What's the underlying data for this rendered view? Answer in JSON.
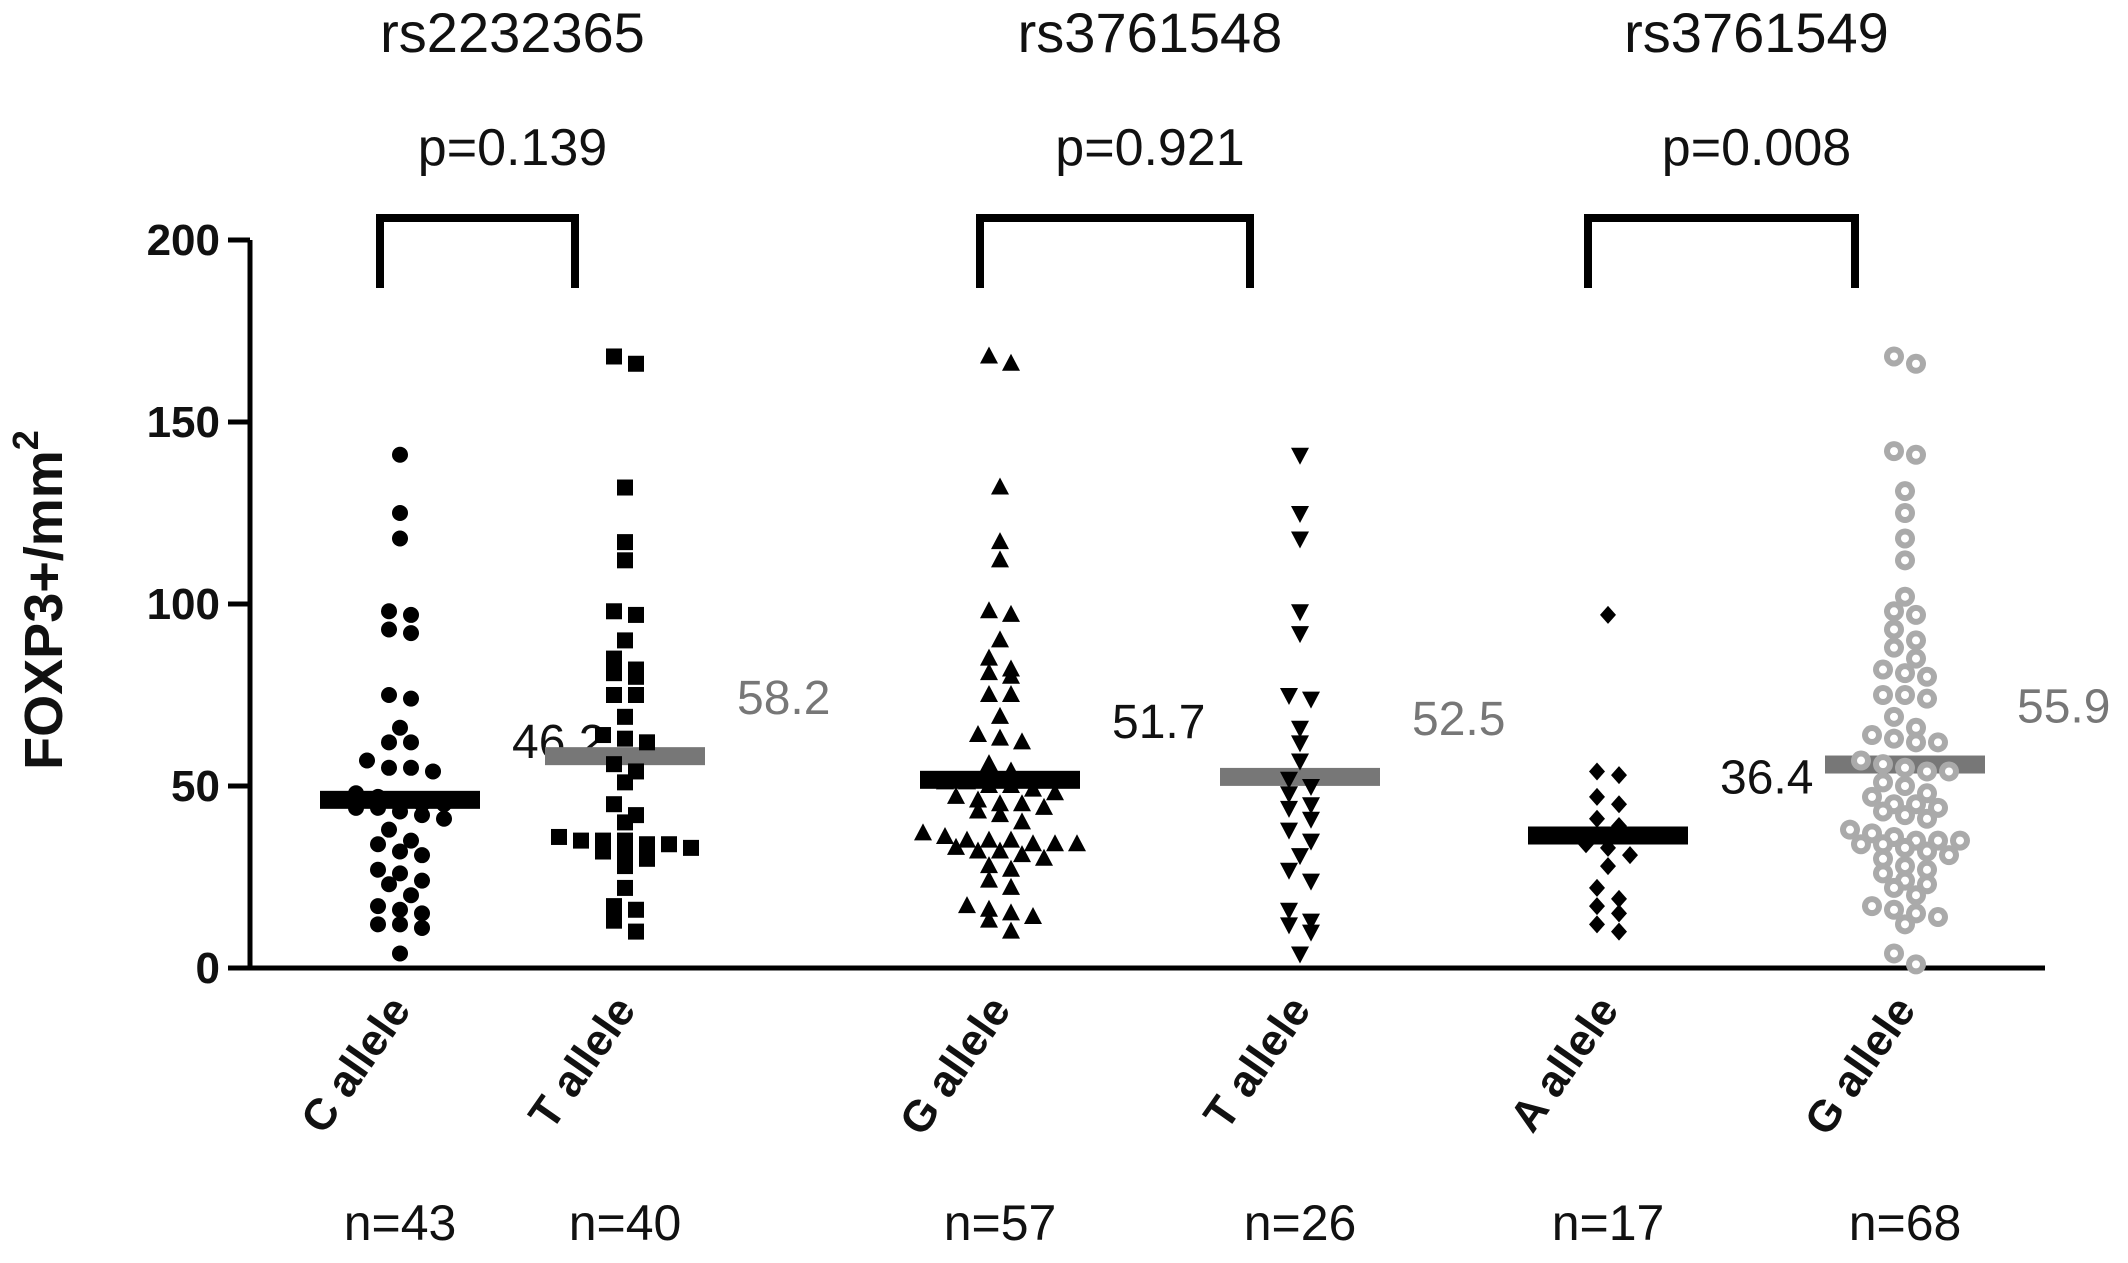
{
  "chart_data": {
    "type": "scatter",
    "ylabel": "FOXP3+/mm",
    "ylabel_superscript": "2",
    "ylim": [
      0,
      200
    ],
    "yticks": [
      "0",
      "50",
      "100",
      "150",
      "200"
    ],
    "groups": [
      {
        "snp": "rs2232365",
        "p_value": "p=0.139",
        "alleles": [
          {
            "label": "C allele",
            "n": "n=43",
            "mean": 46.2,
            "mean_label": "46.2",
            "marker": "circle",
            "color": "#000000",
            "mean_color": "#000000",
            "values": [
              141,
              125,
              118,
              98,
              97,
              93,
              92,
              75,
              74,
              66,
              62,
              62,
              57,
              55,
              55,
              54,
              48,
              47,
              46,
              45,
              45,
              44,
              44,
              43,
              42,
              41,
              38,
              35,
              34,
              32,
              31,
              27,
              26,
              24,
              23,
              20,
              17,
              16,
              15,
              12,
              12,
              11,
              4
            ]
          },
          {
            "label": "T allele",
            "n": "n=40",
            "mean": 58.2,
            "mean_label": "58.2",
            "marker": "square",
            "color": "#000000",
            "mean_color": "#777777",
            "values": [
              168,
              166,
              132,
              117,
              112,
              98,
              97,
              90,
              85,
              82,
              81,
              80,
              75,
              75,
              69,
              64,
              63,
              62,
              56,
              54,
              51,
              45,
              42,
              40,
              36,
              35,
              35,
              35,
              34,
              34,
              33,
              32,
              32,
              30,
              28,
              22,
              17,
              16,
              13,
              10
            ]
          }
        ]
      },
      {
        "snp": "rs3761548",
        "p_value": "p=0.921",
        "alleles": [
          {
            "label": "G allele",
            "n": "n=57",
            "mean": 51.7,
            "mean_label": "51.7",
            "marker": "triangle-up",
            "color": "#000000",
            "mean_color": "#000000",
            "values": [
              168,
              166,
              132,
              117,
              112,
              98,
              97,
              90,
              85,
              82,
              81,
              80,
              75,
              75,
              69,
              64,
              63,
              62,
              56,
              54,
              51,
              51,
              50,
              50,
              49,
              48,
              47,
              46,
              45,
              45,
              44,
              43,
              42,
              40,
              37,
              36,
              35,
              35,
              35,
              34,
              34,
              34,
              33,
              32,
              32,
              31,
              30,
              28,
              27,
              24,
              22,
              17,
              16,
              15,
              14,
              13,
              10
            ]
          },
          {
            "label": "T allele",
            "n": "n=26",
            "mean": 52.5,
            "mean_label": "52.5",
            "marker": "triangle-down",
            "color": "#000000",
            "mean_color": "#777777",
            "values": [
              141,
              125,
              118,
              98,
              92,
              75,
              74,
              66,
              62,
              57,
              52,
              50,
              48,
              45,
              44,
              41,
              38,
              35,
              31,
              27,
              24,
              16,
              13,
              12,
              10,
              4
            ]
          }
        ]
      },
      {
        "snp": "rs3761549",
        "p_value": "p=0.008",
        "alleles": [
          {
            "label": "A allele",
            "n": "n=17",
            "mean": 36.4,
            "mean_label": "36.4",
            "marker": "diamond",
            "color": "#000000",
            "mean_color": "#000000",
            "values": [
              97,
              54,
              53,
              47,
              45,
              41,
              39,
              34,
              33,
              31,
              28,
              22,
              19,
              17,
              15,
              12,
              10
            ]
          },
          {
            "label": "G allele",
            "n": "n=68",
            "mean": 55.9,
            "mean_label": "55.9",
            "marker": "ring",
            "color": "#aaaaaa",
            "mean_color": "#777777",
            "values": [
              168,
              166,
              142,
              141,
              131,
              125,
              118,
              112,
              102,
              98,
              97,
              93,
              90,
              88,
              85,
              82,
              81,
              80,
              75,
              75,
              74,
              69,
              66,
              64,
              63,
              62,
              62,
              57,
              56,
              55,
              54,
              54,
              51,
              50,
              48,
              47,
              45,
              45,
              44,
              43,
              42,
              41,
              38,
              37,
              36,
              35,
              35,
              35,
              34,
              34,
              33,
              32,
              31,
              30,
              28,
              27,
              26,
              24,
              23,
              22,
              20,
              17,
              16,
              15,
              14,
              12,
              4,
              1
            ]
          }
        ]
      }
    ]
  }
}
